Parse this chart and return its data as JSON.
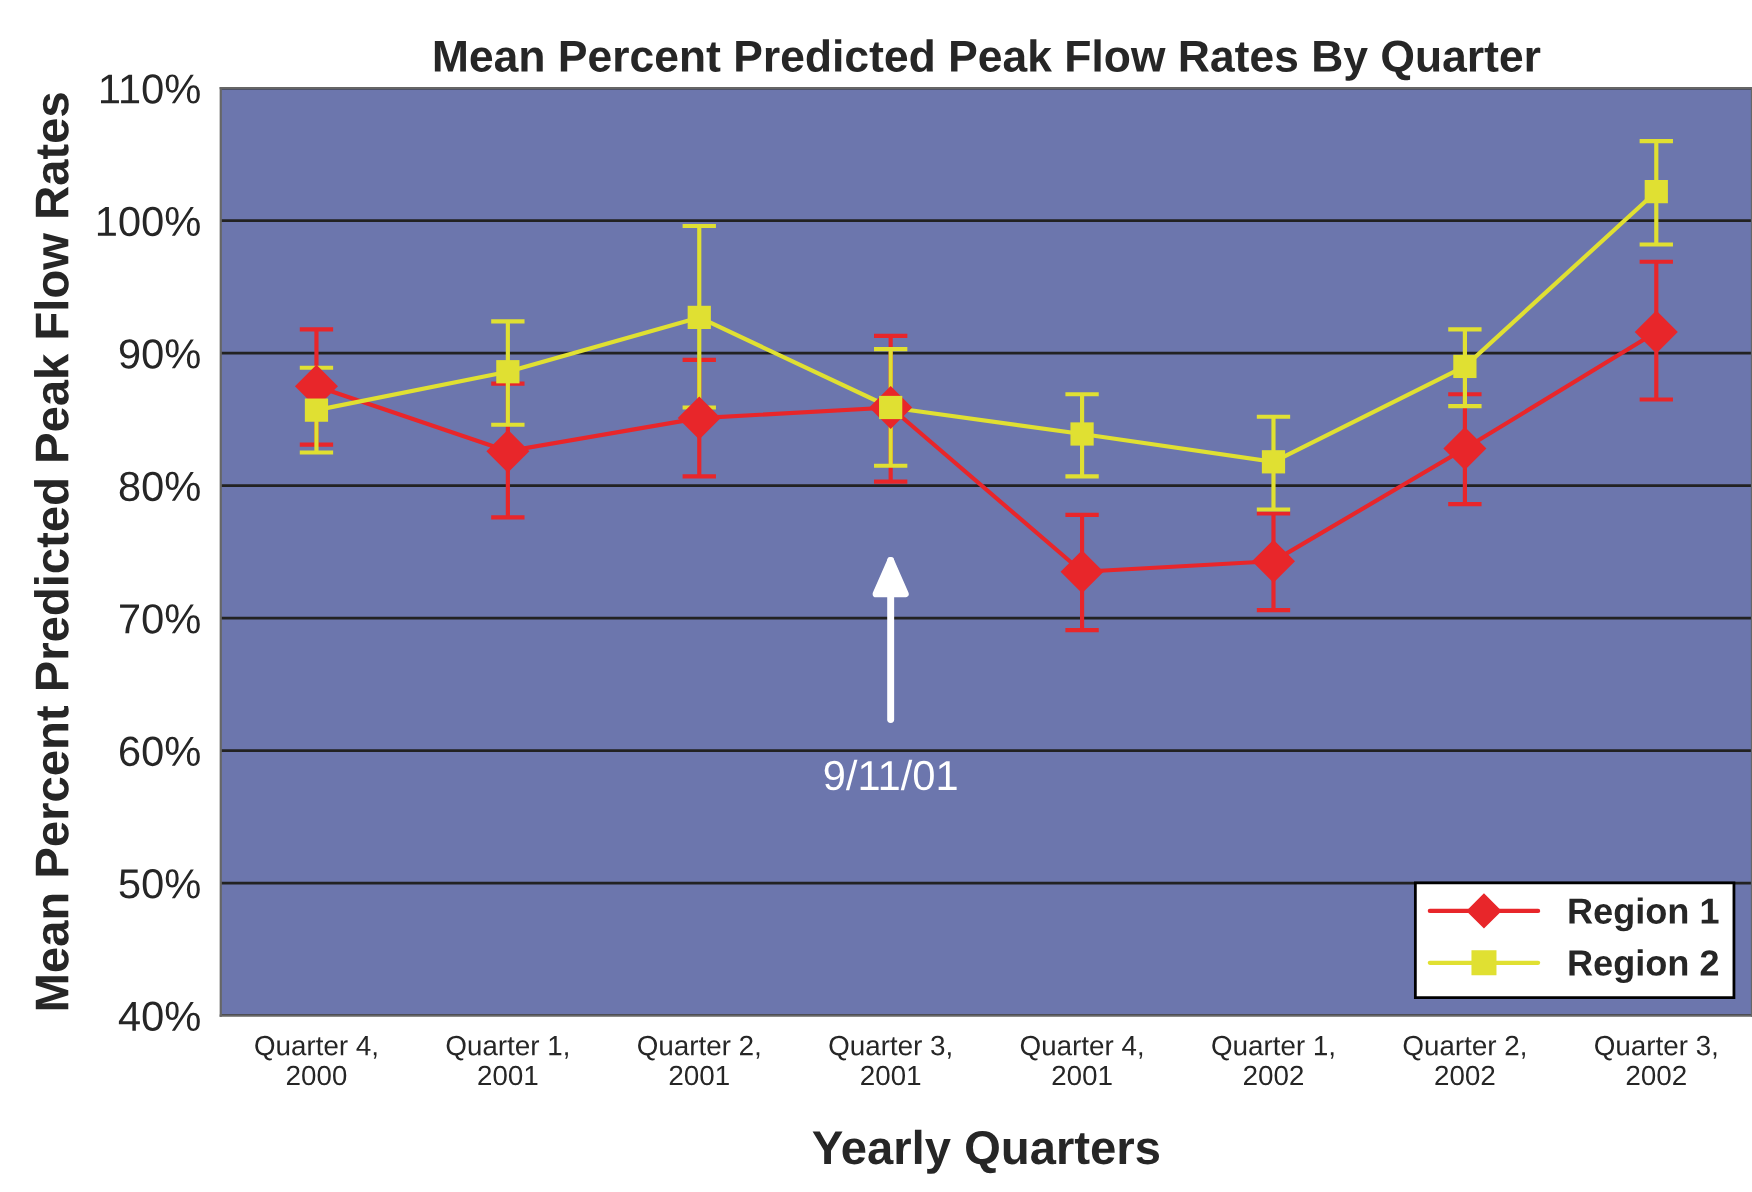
{
  "chart_data": {
    "type": "line",
    "title": "Mean Percent Predicted Peak Flow Rates By Quarter",
    "xlabel": "Yearly Quarters",
    "ylabel": "Mean Percent Predicted Peak Flow Rates",
    "categories": [
      "Quarter 4, 2000",
      "Quarter 1, 2001",
      "Quarter 2, 2001",
      "Quarter 3, 2001",
      "Quarter 4, 2001",
      "Quarter 1, 2002",
      "Quarter 2, 2002",
      "Quarter 3, 2002"
    ],
    "series": [
      {
        "name": "Region 1",
        "color": "#e8262a",
        "marker": "diamond",
        "values": [
          87.5,
          82.6,
          85.1,
          85.9,
          73.5,
          74.3,
          82.8,
          91.6
        ],
        "errors": [
          [
            83.1,
            91.8
          ],
          [
            77.6,
            87.7
          ],
          [
            80.7,
            89.5
          ],
          [
            80.3,
            91.3
          ],
          [
            69.1,
            77.8
          ],
          [
            70.6,
            77.9
          ],
          [
            78.6,
            86.9
          ],
          [
            86.5,
            96.9
          ]
        ]
      },
      {
        "name": "Region 2",
        "color": "#e0e032",
        "marker": "square",
        "values": [
          85.7,
          88.6,
          92.7,
          85.9,
          83.9,
          81.8,
          89.0,
          102.2
        ],
        "errors": [
          [
            82.5,
            88.9
          ],
          [
            84.6,
            92.4
          ],
          [
            85.9,
            99.6
          ],
          [
            81.5,
            90.3
          ],
          [
            80.7,
            86.9
          ],
          [
            78.2,
            85.2
          ],
          [
            86.0,
            91.8
          ],
          [
            98.2,
            106.0
          ]
        ]
      }
    ],
    "ylim": [
      40,
      110
    ],
    "yticks": [
      {
        "value": 40,
        "label": "40%"
      },
      {
        "value": 50,
        "label": "50%"
      },
      {
        "value": 60,
        "label": "60%"
      },
      {
        "value": 70,
        "label": "70%"
      },
      {
        "value": 80,
        "label": "80%"
      },
      {
        "value": 90,
        "label": "90%"
      },
      {
        "value": 100,
        "label": "100%"
      },
      {
        "value": 110,
        "label": "110%"
      }
    ],
    "grid": "y",
    "legend": "bottom right",
    "line_style": "solid",
    "annotations": [
      "9/11/01"
    ]
  }
}
